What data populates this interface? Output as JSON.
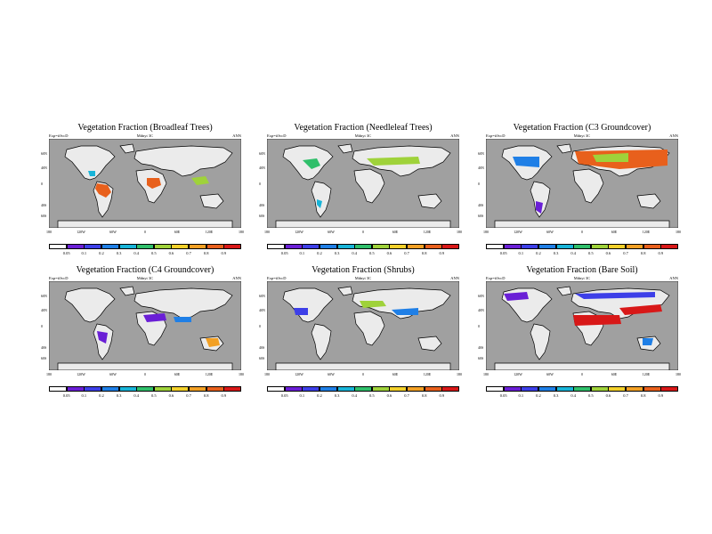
{
  "labels": {
    "left": "Exp=iffvcD",
    "middle": "Mdnyt 3C",
    "right": "ANN"
  },
  "lat_ticks": [
    "60N",
    "40N",
    "0",
    "40S",
    "60S"
  ],
  "lon_ticks": [
    "180",
    "120W",
    "60W",
    "0",
    "60E",
    "120E",
    "180"
  ],
  "colorbar": {
    "labels": [
      "0.05",
      "0.1",
      "0.2",
      "0.3",
      "0.4",
      "0.5",
      "0.6",
      "0.7",
      "0.8",
      "0.9"
    ],
    "colors": [
      "#ffffff",
      "#6a1fd6",
      "#3d3fe8",
      "#1f7fe6",
      "#18b4d8",
      "#2fbf6a",
      "#9fd23a",
      "#f2d02a",
      "#f2a024",
      "#e8601c",
      "#d81818"
    ]
  },
  "panels": [
    {
      "title": "Vegetation Fraction (Broadleaf Trees)"
    },
    {
      "title": "Vegetation Fraction (Needleleaf Trees)"
    },
    {
      "title": "Vegetation Fraction (C3 Groundcover)"
    },
    {
      "title": "Vegetation Fraction (C4 Groundcover)"
    },
    {
      "title": "Vegetation Fraction (Shrubs)"
    },
    {
      "title": "Vegetation Fraction (Bare Soil)"
    }
  ],
  "colors": {
    "ocean": "#a0a0a0",
    "land": "#ebebeb",
    "coast": "#000000"
  }
}
